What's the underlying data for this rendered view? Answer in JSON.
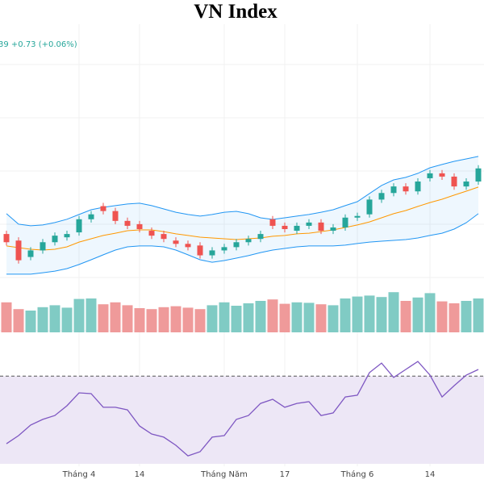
{
  "chart_data": {
    "type": "candlestick",
    "title": "VN Index",
    "annotation": "39 +0.73 (+0.06%)",
    "categories": [
      null,
      null,
      null,
      null,
      null,
      null,
      "Tháng 4",
      null,
      null,
      null,
      null,
      "14",
      null,
      null,
      null,
      null,
      null,
      null,
      "Tháng Năm",
      null,
      null,
      null,
      null,
      "17",
      null,
      null,
      null,
      null,
      null,
      "Tháng 6",
      null,
      null,
      null,
      null,
      null,
      "14",
      null,
      null,
      null,
      null
    ],
    "open": [
      1197,
      1193,
      1183,
      1187,
      1192,
      1195,
      1198,
      1206,
      1214,
      1211,
      1205,
      1203,
      1199,
      1197,
      1193,
      1191,
      1190,
      1184,
      1187,
      1189,
      1192,
      1194,
      1206,
      1202,
      1199,
      1202,
      1204,
      1199,
      1201,
      1207,
      1209,
      1218,
      1222,
      1226,
      1223,
      1231,
      1234,
      1232,
      1226,
      1229
    ],
    "high": [
      1199,
      1195,
      1189,
      1194,
      1198,
      1199,
      1208,
      1211,
      1216,
      1213,
      1207,
      1205,
      1201,
      1199,
      1195,
      1193,
      1192,
      1189,
      1191,
      1194,
      1196,
      1199,
      1208,
      1204,
      1204,
      1206,
      1206,
      1203,
      1209,
      1210,
      1220,
      1224,
      1228,
      1228,
      1231,
      1236,
      1236,
      1234,
      1231,
      1239
    ],
    "low": [
      1190,
      1179,
      1181,
      1185,
      1190,
      1193,
      1196,
      1204,
      1209,
      1203,
      1200,
      1198,
      1194,
      1192,
      1189,
      1187,
      1182,
      1182,
      1185,
      1187,
      1190,
      1192,
      1200,
      1198,
      1197,
      1200,
      1197,
      1197,
      1199,
      1205,
      1207,
      1216,
      1220,
      1221,
      1221,
      1229,
      1230,
      1224,
      1224,
      1227
    ],
    "close": [
      1192,
      1181,
      1187,
      1192,
      1196,
      1197,
      1206,
      1209,
      1211,
      1205,
      1202,
      1200,
      1196,
      1194,
      1191,
      1189,
      1184,
      1187,
      1189,
      1192,
      1194,
      1197,
      1202,
      1200,
      1202,
      1204,
      1199,
      1201,
      1207,
      1208,
      1218,
      1222,
      1226,
      1223,
      1229,
      1234,
      1232,
      1226,
      1229,
      1237
    ],
    "up_color": "#26a69a",
    "down_color": "#ef5350",
    "ylim": [
      1170,
      1320
    ],
    "bands": {
      "upper": [
        1209.4,
        1203,
        1202,
        1202.5,
        1204,
        1206,
        1208.9,
        1211.8,
        1213.3,
        1214.3,
        1215.3,
        1215.8,
        1214.3,
        1212.3,
        1210.3,
        1208.9,
        1207.9,
        1208.9,
        1210.3,
        1210.8,
        1209.4,
        1206.9,
        1205.9,
        1206.9,
        1207.9,
        1208.9,
        1210.3,
        1211.8,
        1214.3,
        1216.7,
        1221.7,
        1226.6,
        1230,
        1231.5,
        1234,
        1237.4,
        1239.4,
        1241.3,
        1242.8,
        1244.3
      ],
      "middle": [
        1189.7,
        1188.7,
        1187.7,
        1187.2,
        1187.7,
        1189.2,
        1192.1,
        1194.1,
        1196.1,
        1197.5,
        1199,
        1199.5,
        1199.5,
        1198.5,
        1197.1,
        1196.1,
        1195.1,
        1194.6,
        1194.1,
        1193.6,
        1194.1,
        1194.6,
        1195.6,
        1196.1,
        1197.1,
        1197.5,
        1198.5,
        1199.5,
        1201,
        1202.5,
        1204.4,
        1206.9,
        1209.4,
        1211.3,
        1213.8,
        1216.2,
        1218.2,
        1220.7,
        1223.1,
        1225.6
      ],
      "lower": [
        1172.5,
        1172.5,
        1172.5,
        1173.4,
        1174.4,
        1175.9,
        1178.4,
        1181.3,
        1184.3,
        1187.2,
        1189.2,
        1189.7,
        1189.7,
        1189.2,
        1187.2,
        1184.3,
        1181.3,
        1179.8,
        1180.8,
        1182.3,
        1183.8,
        1185.7,
        1187.2,
        1188.2,
        1189.2,
        1189.7,
        1189.7,
        1189.7,
        1190.2,
        1191.2,
        1192.1,
        1192.6,
        1193.1,
        1193.6,
        1194.6,
        1196.1,
        1197.5,
        1200,
        1203.9,
        1209.4
      ],
      "band_color": "#2196f3",
      "middle_color": "#ff9800"
    },
    "volume": {
      "values": [
        620,
        480,
        450,
        520,
        560,
        510,
        690,
        700,
        580,
        620,
        560,
        500,
        480,
        520,
        540,
        510,
        480,
        560,
        620,
        550,
        600,
        650,
        680,
        590,
        620,
        610,
        580,
        560,
        700,
        740,
        760,
        730,
        830,
        650,
        720,
        810,
        640,
        600,
        650,
        700
      ],
      "ylim": [
        0,
        1000
      ],
      "up_color": "#80cbc4",
      "down_color": "#ef9a9a"
    },
    "rsi": {
      "values": [
        35.3,
        39.5,
        44.9,
        47.8,
        49.8,
        54.8,
        61.4,
        61,
        54,
        54,
        52.7,
        44.4,
        40.3,
        38.7,
        34.5,
        29.1,
        31.2,
        38.7,
        39.5,
        47.8,
        49.8,
        56,
        58.1,
        54,
        56,
        56.9,
        49.8,
        51.1,
        59.3,
        60.2,
        71.8,
        76.7,
        69.3,
        73.4,
        77.5,
        70.5,
        59.3,
        65.1,
        70.5,
        73.4
      ],
      "ylim": [
        25,
        85
      ],
      "level": 70,
      "color": "#7e57c2",
      "fill": "#ede7f6"
    },
    "grid": true
  }
}
